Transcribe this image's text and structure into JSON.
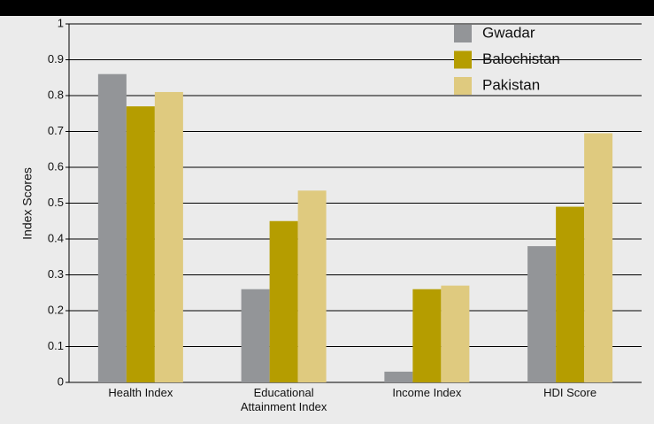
{
  "chart_data": {
    "type": "bar",
    "categories": [
      "Health Index",
      "Educational Attainment Index",
      "Income Index",
      "HDI Score"
    ],
    "series": [
      {
        "name": "Gwadar",
        "color": "#939598",
        "values": [
          0.86,
          0.26,
          0.03,
          0.38
        ]
      },
      {
        "name": "Balochistan",
        "color": "#b59d00",
        "values": [
          0.77,
          0.45,
          0.26,
          0.49
        ]
      },
      {
        "name": "Pakistan",
        "color": "#dfca7f",
        "values": [
          0.81,
          0.535,
          0.27,
          0.695
        ]
      }
    ],
    "y_label": "Index Scores",
    "ylim": [
      0,
      1
    ],
    "yticks": [
      0,
      0.1,
      0.2,
      0.3,
      0.4,
      0.5,
      0.6,
      0.7,
      0.8,
      0.9,
      1
    ],
    "grid": true,
    "legend": "upper right"
  }
}
